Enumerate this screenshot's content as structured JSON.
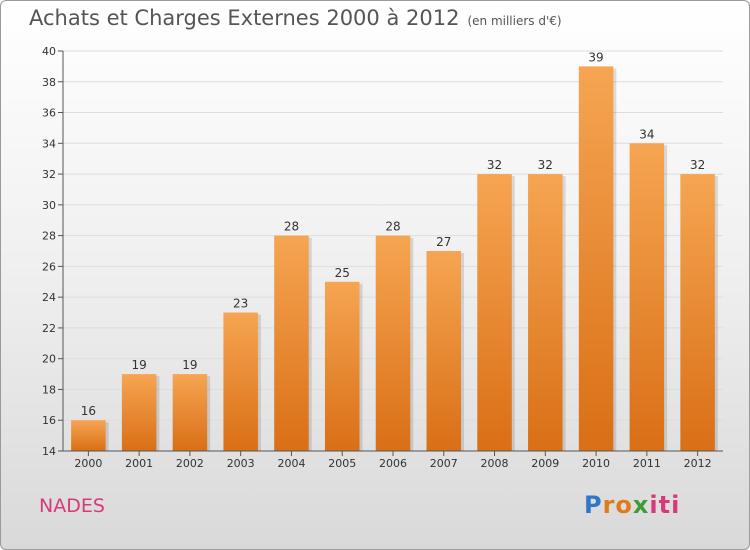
{
  "title": "Achats et Charges Externes 2000 à 2012",
  "subtitle": "(en milliers d'€)",
  "location": "NADES",
  "logo": {
    "part1": "P",
    "part2": "ro",
    "part3": "x",
    "part4": "iti"
  },
  "colors": {
    "bar_top": "#f6a552",
    "bar_bottom": "#d96f16",
    "axis": "#555555",
    "grid": "#dddddd"
  },
  "chart_data": {
    "type": "bar",
    "categories": [
      "2000",
      "2001",
      "2002",
      "2003",
      "2004",
      "2005",
      "2006",
      "2007",
      "2008",
      "2009",
      "2010",
      "2011",
      "2012"
    ],
    "values": [
      16,
      19,
      19,
      23,
      28,
      25,
      28,
      27,
      32,
      32,
      39,
      34,
      32
    ],
    "title": "Achats et Charges Externes 2000 à 2012",
    "subtitle": "(en milliers d'€)",
    "xlabel": "",
    "ylabel": "",
    "ylim": [
      14,
      40
    ],
    "yticks": [
      14,
      16,
      18,
      20,
      22,
      24,
      26,
      28,
      30,
      32,
      34,
      36,
      38,
      40
    ],
    "grid": true,
    "data_labels": true,
    "legend": "none"
  }
}
